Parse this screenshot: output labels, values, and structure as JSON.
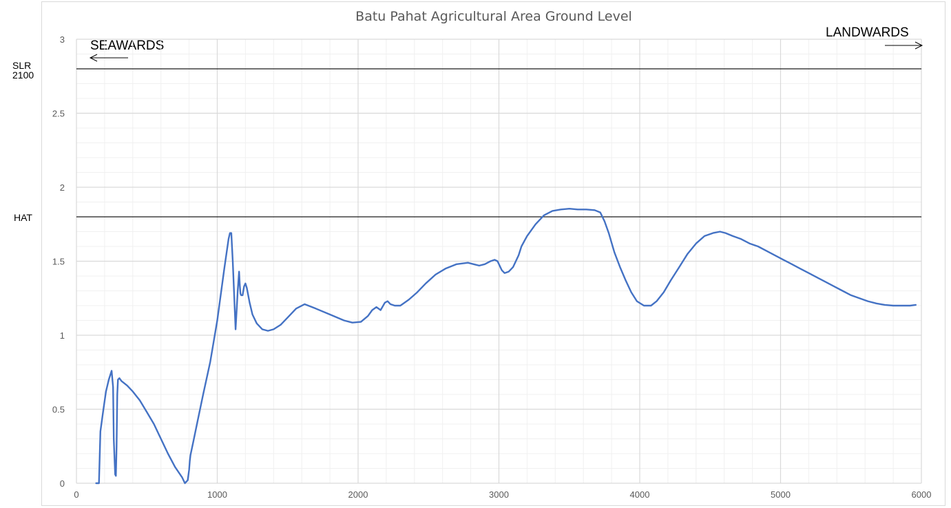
{
  "chart_data": {
    "type": "line",
    "title": "Batu Pahat Agricultural Area Ground Level",
    "xlabel": "",
    "ylabel": "",
    "xlim": [
      0,
      6000
    ],
    "ylim": [
      0,
      3
    ],
    "x_ticks": [
      "0",
      "1000",
      "2000",
      "3000",
      "4000",
      "5000",
      "6000"
    ],
    "y_ticks": [
      "0",
      "0.5",
      "1",
      "1.5",
      "2",
      "2.5",
      "3"
    ],
    "grid": true,
    "reference_lines": [
      {
        "label": "SLR\n2100",
        "label_lines": [
          "SLR",
          "2100"
        ],
        "y": 2.8
      },
      {
        "label": "HAT",
        "label_lines": [
          "HAT"
        ],
        "y": 1.8
      }
    ],
    "annotations": {
      "seawards": "SEAWARDS",
      "landwards": "LANDWARDS"
    },
    "series": [
      {
        "line_color": "#4472c4",
        "x": [
          140,
          160,
          170,
          190,
          210,
          230,
          250,
          260,
          265,
          275,
          280,
          285,
          290,
          295,
          305,
          320,
          360,
          400,
          450,
          500,
          550,
          600,
          650,
          700,
          750,
          770,
          790,
          800,
          805,
          810,
          830,
          860,
          900,
          950,
          1000,
          1050,
          1080,
          1090,
          1100,
          1110,
          1130,
          1145,
          1155,
          1160,
          1165,
          1170,
          1180,
          1190,
          1200,
          1210,
          1230,
          1250,
          1280,
          1320,
          1360,
          1400,
          1450,
          1500,
          1560,
          1620,
          1700,
          1800,
          1900,
          1960,
          2020,
          2070,
          2100,
          2130,
          2160,
          2190,
          2210,
          2230,
          2260,
          2300,
          2360,
          2420,
          2480,
          2550,
          2620,
          2700,
          2780,
          2820,
          2860,
          2900,
          2940,
          2970,
          2990,
          3020,
          3040,
          3070,
          3100,
          3140,
          3160,
          3200,
          3260,
          3320,
          3380,
          3440,
          3500,
          3560,
          3620,
          3680,
          3720,
          3750,
          3780,
          3820,
          3860,
          3900,
          3940,
          3980,
          4030,
          4080,
          4120,
          4170,
          4220,
          4280,
          4340,
          4400,
          4460,
          4520,
          4570,
          4610,
          4660,
          4720,
          4780,
          4840,
          4900,
          4960,
          5020,
          5080,
          5140,
          5200,
          5260,
          5320,
          5380,
          5440,
          5500,
          5560,
          5620,
          5680,
          5740,
          5800,
          5860,
          5920,
          5960
        ],
        "y": [
          0.0,
          0.0,
          0.35,
          0.49,
          0.62,
          0.7,
          0.76,
          0.65,
          0.3,
          0.06,
          0.05,
          0.25,
          0.6,
          0.7,
          0.71,
          0.69,
          0.66,
          0.62,
          0.56,
          0.48,
          0.4,
          0.3,
          0.2,
          0.11,
          0.04,
          0.0,
          0.02,
          0.09,
          0.15,
          0.19,
          0.28,
          0.42,
          0.6,
          0.82,
          1.1,
          1.45,
          1.65,
          1.69,
          1.69,
          1.5,
          1.04,
          1.3,
          1.43,
          1.34,
          1.28,
          1.27,
          1.27,
          1.33,
          1.35,
          1.32,
          1.22,
          1.14,
          1.08,
          1.04,
          1.03,
          1.04,
          1.07,
          1.12,
          1.18,
          1.21,
          1.18,
          1.14,
          1.1,
          1.085,
          1.09,
          1.13,
          1.17,
          1.19,
          1.17,
          1.22,
          1.23,
          1.21,
          1.2,
          1.2,
          1.24,
          1.29,
          1.35,
          1.41,
          1.45,
          1.48,
          1.49,
          1.48,
          1.47,
          1.48,
          1.5,
          1.51,
          1.5,
          1.44,
          1.42,
          1.43,
          1.46,
          1.54,
          1.6,
          1.67,
          1.75,
          1.81,
          1.84,
          1.85,
          1.855,
          1.85,
          1.85,
          1.845,
          1.83,
          1.77,
          1.69,
          1.56,
          1.46,
          1.37,
          1.29,
          1.23,
          1.2,
          1.2,
          1.23,
          1.29,
          1.37,
          1.46,
          1.55,
          1.62,
          1.67,
          1.69,
          1.7,
          1.69,
          1.67,
          1.65,
          1.62,
          1.6,
          1.57,
          1.54,
          1.51,
          1.48,
          1.45,
          1.42,
          1.39,
          1.36,
          1.33,
          1.3,
          1.27,
          1.25,
          1.23,
          1.215,
          1.205,
          1.2,
          1.2,
          1.2,
          1.205
        ]
      }
    ]
  }
}
